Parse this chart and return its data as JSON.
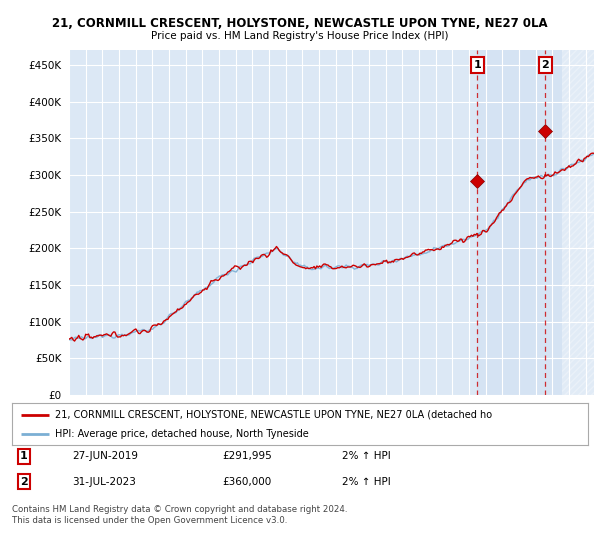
{
  "title1": "21, CORNMILL CRESCENT, HOLYSTONE, NEWCASTLE UPON TYNE, NE27 0LA",
  "title2": "Price paid vs. HM Land Registry's House Price Index (HPI)",
  "ytick_values": [
    0,
    50000,
    100000,
    150000,
    200000,
    250000,
    300000,
    350000,
    400000,
    450000
  ],
  "ylim": [
    0,
    470000
  ],
  "xlim_start": 1995.0,
  "xlim_end": 2026.5,
  "background_color": "#ffffff",
  "plot_bg_color": "#dce8f5",
  "grid_color": "#ffffff",
  "hpi_color": "#7bafd4",
  "price_color": "#cc0000",
  "marker1_date": 2019.49,
  "marker1_price": 291995,
  "marker2_date": 2023.58,
  "marker2_price": 360000,
  "legend_line1": "21, CORNMILL CRESCENT, HOLYSTONE, NEWCASTLE UPON TYNE, NE27 0LA (detached ho",
  "legend_line2": "HPI: Average price, detached house, North Tyneside",
  "table_row1_num": "1",
  "table_row1_date": "27-JUN-2019",
  "table_row1_price": "£291,995",
  "table_row1_hpi": "2% ↑ HPI",
  "table_row2_num": "2",
  "table_row2_date": "31-JUL-2023",
  "table_row2_price": "£360,000",
  "table_row2_hpi": "2% ↑ HPI",
  "footer": "Contains HM Land Registry data © Crown copyright and database right 2024.\nThis data is licensed under the Open Government Licence v3.0.",
  "dashed_line1_x": 2019.49,
  "dashed_line2_x": 2023.58,
  "shade_start": 2019.49,
  "shade_end": 2026.5,
  "hatch_start": 2024.58,
  "hatch_end": 2026.5
}
